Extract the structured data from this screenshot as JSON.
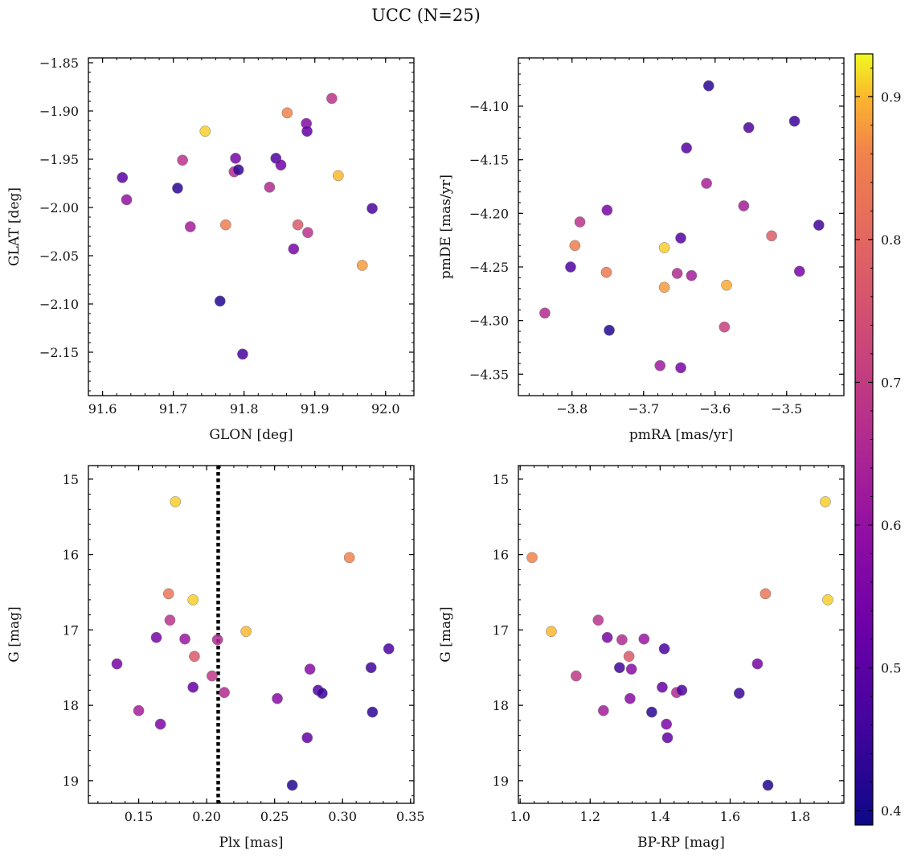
{
  "figure_title": "UCC (N=25)",
  "colorbar": {
    "colormap": "plasma",
    "vmin": 0.39,
    "vmax": 0.93,
    "ticks": [
      0.4,
      0.5,
      0.6,
      0.7,
      0.8,
      0.9
    ],
    "tick_labels": [
      "0.4",
      "0.5",
      "0.6",
      "0.7",
      "0.8",
      "0.9"
    ]
  },
  "chart_data": [
    {
      "type": "scatter",
      "panel": "top-left",
      "xlabel": "GLON [deg]",
      "ylabel": "GLAT [deg]",
      "xlim": [
        91.58,
        92.04
      ],
      "ylim": [
        -2.195,
        -1.845
      ],
      "xticks": [
        91.6,
        91.7,
        91.8,
        91.9,
        92.0
      ],
      "xtick_labels": [
        "91.6",
        "91.7",
        "91.8",
        "91.9",
        "92.0"
      ],
      "yticks": [
        -1.85,
        -1.9,
        -1.95,
        -2.0,
        -2.05,
        -2.1,
        -2.15
      ],
      "ytick_labels": [
        "−1.85",
        "−1.90",
        "−1.95",
        "−2.00",
        "−2.05",
        "−2.10",
        "−2.15"
      ],
      "points": [
        {
          "x": 91.628,
          "y": -1.969,
          "c": 0.5
        },
        {
          "x": 91.634,
          "y": -1.992,
          "c": 0.6
        },
        {
          "x": 91.706,
          "y": -1.98,
          "c": 0.43
        },
        {
          "x": 91.713,
          "y": -1.951,
          "c": 0.68
        },
        {
          "x": 91.724,
          "y": -2.02,
          "c": 0.63
        },
        {
          "x": 91.745,
          "y": -1.921,
          "c": 0.91
        },
        {
          "x": 91.766,
          "y": -2.097,
          "c": 0.42
        },
        {
          "x": 91.774,
          "y": -2.018,
          "c": 0.85
        },
        {
          "x": 91.786,
          "y": -1.963,
          "c": 0.66
        },
        {
          "x": 91.788,
          "y": -1.949,
          "c": 0.55
        },
        {
          "x": 91.792,
          "y": -1.961,
          "c": 0.44
        },
        {
          "x": 91.798,
          "y": -2.152,
          "c": 0.47
        },
        {
          "x": 91.836,
          "y": -1.979,
          "c": 0.66
        },
        {
          "x": 91.845,
          "y": -1.949,
          "c": 0.48
        },
        {
          "x": 91.852,
          "y": -1.956,
          "c": 0.54
        },
        {
          "x": 91.861,
          "y": -1.902,
          "c": 0.86
        },
        {
          "x": 91.87,
          "y": -2.043,
          "c": 0.55
        },
        {
          "x": 91.876,
          "y": -2.018,
          "c": 0.77
        },
        {
          "x": 91.888,
          "y": -1.913,
          "c": 0.57
        },
        {
          "x": 91.889,
          "y": -1.921,
          "c": 0.52
        },
        {
          "x": 91.89,
          "y": -2.026,
          "c": 0.68
        },
        {
          "x": 91.924,
          "y": -1.887,
          "c": 0.68
        },
        {
          "x": 91.933,
          "y": -1.967,
          "c": 0.9
        },
        {
          "x": 91.967,
          "y": -2.06,
          "c": 0.88
        },
        {
          "x": 91.981,
          "y": -2.001,
          "c": 0.47
        }
      ]
    },
    {
      "type": "scatter",
      "panel": "top-right",
      "xlabel": "pmRA [mas/yr]",
      "ylabel": "pmDE [mas/yr]",
      "xlim": [
        -3.875,
        -3.42
      ],
      "ylim": [
        -4.37,
        -4.055
      ],
      "xticks": [
        -3.8,
        -3.7,
        -3.6,
        -3.5
      ],
      "xtick_labels": [
        "−3.8",
        "−3.7",
        "−3.6",
        "−3.5"
      ],
      "yticks": [
        -4.1,
        -4.15,
        -4.2,
        -4.25,
        -4.3,
        -4.35
      ],
      "ytick_labels": [
        "−4.10",
        "−4.15",
        "−4.20",
        "−4.25",
        "−4.30",
        "−4.35"
      ],
      "points": [
        {
          "x": -3.838,
          "y": -4.293,
          "c": 0.66
        },
        {
          "x": -3.802,
          "y": -4.25,
          "c": 0.48
        },
        {
          "x": -3.796,
          "y": -4.23,
          "c": 0.85
        },
        {
          "x": -3.789,
          "y": -4.208,
          "c": 0.68
        },
        {
          "x": -3.752,
          "y": -4.255,
          "c": 0.84
        },
        {
          "x": -3.751,
          "y": -4.197,
          "c": 0.55
        },
        {
          "x": -3.748,
          "y": -4.309,
          "c": 0.42
        },
        {
          "x": -3.677,
          "y": -4.342,
          "c": 0.62
        },
        {
          "x": -3.671,
          "y": -4.232,
          "c": 0.91
        },
        {
          "x": -3.671,
          "y": -4.269,
          "c": 0.88
        },
        {
          "x": -3.653,
          "y": -4.256,
          "c": 0.66
        },
        {
          "x": -3.648,
          "y": -4.344,
          "c": 0.55
        },
        {
          "x": -3.648,
          "y": -4.223,
          "c": 0.49
        },
        {
          "x": -3.64,
          "y": -4.139,
          "c": 0.49
        },
        {
          "x": -3.633,
          "y": -4.258,
          "c": 0.63
        },
        {
          "x": -3.612,
          "y": -4.172,
          "c": 0.64
        },
        {
          "x": -3.609,
          "y": -4.081,
          "c": 0.43
        },
        {
          "x": -3.584,
          "y": -4.267,
          "c": 0.89
        },
        {
          "x": -3.587,
          "y": -4.306,
          "c": 0.71
        },
        {
          "x": -3.56,
          "y": -4.193,
          "c": 0.63
        },
        {
          "x": -3.553,
          "y": -4.12,
          "c": 0.48
        },
        {
          "x": -3.521,
          "y": -4.221,
          "c": 0.78
        },
        {
          "x": -3.489,
          "y": -4.114,
          "c": 0.45
        },
        {
          "x": -3.482,
          "y": -4.254,
          "c": 0.55
        },
        {
          "x": -3.455,
          "y": -4.211,
          "c": 0.46
        }
      ]
    },
    {
      "type": "scatter",
      "panel": "bottom-left",
      "xlabel": "Plx [mas]",
      "ylabel": "G [mag]",
      "xlim": [
        0.113,
        0.3525
      ],
      "ylim": [
        19.3,
        14.82
      ],
      "y_inverted": true,
      "xticks": [
        0.15,
        0.2,
        0.25,
        0.3,
        0.35
      ],
      "xtick_labels": [
        "0.15",
        "0.20",
        "0.25",
        "0.30",
        "0.35"
      ],
      "yticks": [
        15,
        16,
        17,
        18,
        19
      ],
      "ytick_labels": [
        "15",
        "16",
        "17",
        "18",
        "19"
      ],
      "vline": {
        "x": 0.2085,
        "style": "dotted"
      },
      "points": [
        {
          "x": 0.134,
          "y": 17.45,
          "c": 0.55
        },
        {
          "x": 0.15,
          "y": 18.07,
          "c": 0.63
        },
        {
          "x": 0.163,
          "y": 17.1,
          "c": 0.55
        },
        {
          "x": 0.166,
          "y": 18.25,
          "c": 0.56
        },
        {
          "x": 0.172,
          "y": 16.52,
          "c": 0.83
        },
        {
          "x": 0.173,
          "y": 16.87,
          "c": 0.68
        },
        {
          "x": 0.177,
          "y": 15.3,
          "c": 0.91
        },
        {
          "x": 0.184,
          "y": 17.12,
          "c": 0.61
        },
        {
          "x": 0.19,
          "y": 17.76,
          "c": 0.52
        },
        {
          "x": 0.19,
          "y": 16.6,
          "c": 0.91
        },
        {
          "x": 0.191,
          "y": 17.35,
          "c": 0.77
        },
        {
          "x": 0.204,
          "y": 17.61,
          "c": 0.69
        },
        {
          "x": 0.208,
          "y": 17.13,
          "c": 0.66
        },
        {
          "x": 0.213,
          "y": 17.83,
          "c": 0.66
        },
        {
          "x": 0.229,
          "y": 17.02,
          "c": 0.9
        },
        {
          "x": 0.252,
          "y": 17.91,
          "c": 0.58
        },
        {
          "x": 0.263,
          "y": 19.06,
          "c": 0.42
        },
        {
          "x": 0.274,
          "y": 18.43,
          "c": 0.51
        },
        {
          "x": 0.276,
          "y": 17.52,
          "c": 0.58
        },
        {
          "x": 0.282,
          "y": 17.8,
          "c": 0.48
        },
        {
          "x": 0.285,
          "y": 17.84,
          "c": 0.45
        },
        {
          "x": 0.305,
          "y": 16.04,
          "c": 0.86
        },
        {
          "x": 0.321,
          "y": 17.5,
          "c": 0.46
        },
        {
          "x": 0.322,
          "y": 18.09,
          "c": 0.43
        },
        {
          "x": 0.334,
          "y": 17.25,
          "c": 0.47
        }
      ]
    },
    {
      "type": "scatter",
      "panel": "bottom-right",
      "xlabel": "BP-RP [mag]",
      "ylabel": "G [mag]",
      "xlim": [
        0.995,
        1.925
      ],
      "ylim": [
        19.3,
        14.82
      ],
      "y_inverted": true,
      "xticks": [
        1.0,
        1.2,
        1.4,
        1.6,
        1.8
      ],
      "xtick_labels": [
        "1.0",
        "1.2",
        "1.4",
        "1.6",
        "1.8"
      ],
      "yticks": [
        15,
        16,
        17,
        18,
        19
      ],
      "ytick_labels": [
        "15",
        "16",
        "17",
        "18",
        "19"
      ],
      "points": [
        {
          "x": 1.034,
          "y": 16.04,
          "c": 0.86
        },
        {
          "x": 1.089,
          "y": 17.02,
          "c": 0.9
        },
        {
          "x": 1.16,
          "y": 17.61,
          "c": 0.69
        },
        {
          "x": 1.223,
          "y": 16.87,
          "c": 0.68
        },
        {
          "x": 1.238,
          "y": 18.07,
          "c": 0.63
        },
        {
          "x": 1.249,
          "y": 17.1,
          "c": 0.55
        },
        {
          "x": 1.284,
          "y": 17.5,
          "c": 0.46
        },
        {
          "x": 1.291,
          "y": 17.13,
          "c": 0.66
        },
        {
          "x": 1.311,
          "y": 17.35,
          "c": 0.77
        },
        {
          "x": 1.314,
          "y": 17.91,
          "c": 0.58
        },
        {
          "x": 1.318,
          "y": 17.52,
          "c": 0.58
        },
        {
          "x": 1.354,
          "y": 17.12,
          "c": 0.61
        },
        {
          "x": 1.376,
          "y": 18.09,
          "c": 0.43
        },
        {
          "x": 1.406,
          "y": 17.76,
          "c": 0.52
        },
        {
          "x": 1.412,
          "y": 17.25,
          "c": 0.47
        },
        {
          "x": 1.418,
          "y": 18.25,
          "c": 0.56
        },
        {
          "x": 1.421,
          "y": 18.43,
          "c": 0.51
        },
        {
          "x": 1.447,
          "y": 17.83,
          "c": 0.66
        },
        {
          "x": 1.462,
          "y": 17.8,
          "c": 0.48
        },
        {
          "x": 1.626,
          "y": 17.84,
          "c": 0.45
        },
        {
          "x": 1.678,
          "y": 17.45,
          "c": 0.55
        },
        {
          "x": 1.701,
          "y": 16.52,
          "c": 0.83
        },
        {
          "x": 1.708,
          "y": 19.06,
          "c": 0.42
        },
        {
          "x": 1.872,
          "y": 15.3,
          "c": 0.91
        },
        {
          "x": 1.879,
          "y": 16.6,
          "c": 0.91
        }
      ]
    }
  ]
}
